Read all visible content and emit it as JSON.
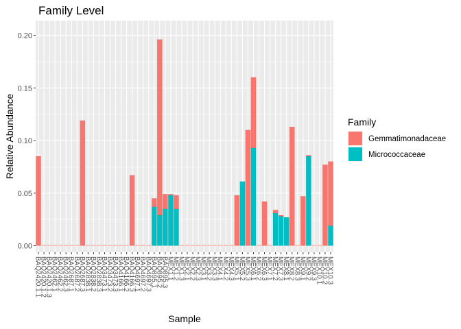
{
  "chart_data": {
    "type": "bar",
    "stacked": true,
    "title": "Family Level",
    "xlabel": "Sample",
    "ylabel": "Relative Abundance",
    "ylim": [
      0,
      0.21
    ],
    "yticks": [
      "0.00",
      "0.05",
      "0.10",
      "0.15",
      "0.20"
    ],
    "ytick_values": [
      0,
      0.05,
      0.1,
      0.15,
      0.2
    ],
    "legend": {
      "title": "Family",
      "position": "right",
      "entries": [
        "Gemmatimonadaceae",
        "Micrococcaceae"
      ]
    },
    "categories": [
      "BAQ2420.1.1",
      "BAQ2420.1.2",
      "BAQ2420.1.3",
      "BAQ2462.1",
      "BAQ2462.2",
      "BAQ2462.3",
      "BAQ2687.1",
      "BAQ2687.2",
      "BAQ2687.3",
      "BAQ2838.1",
      "BAQ2838.2",
      "BAQ2838.3",
      "BAQ3473.1",
      "BAQ3473.2",
      "BAQ3473.3",
      "BAQ4166.1",
      "BAQ4166.2",
      "BAQ4166.3",
      "BAQ4697.1",
      "BAQ4697.2",
      "BAQ4697.3",
      "BAQ895.1",
      "BAQ895.2",
      "BAQ895.3",
      "MEX1.1",
      "MEX1.2",
      "MEX1.3",
      "MEX2.1",
      "MEX2.2",
      "MEX2.3",
      "MEX3.1",
      "MEX3.2",
      "MEX3.3",
      "MEX4.1",
      "MEX4.2",
      "MEX4.3",
      "MEX5.1",
      "MEX5.2",
      "MEX5.3",
      "MEX6.1",
      "MEX6.2",
      "MEX6.3",
      "MEX7.1",
      "MEX7.2",
      "MEX7.3",
      "MEX8.1",
      "MEX8.2",
      "MEX8.3",
      "MEX9.1",
      "MEX9.2",
      "MEX9.3",
      "MEX10.1",
      "MEX10.2",
      "MEX10.3"
    ],
    "tick_labels": [
      "BAQ2420.1.1",
      "BAQ2420.1.2",
      "BAQ2420.1.3",
      "BAQ2462.1",
      "BAQ2462.2",
      "BAQ2462.3",
      "BAQ2687.1",
      "BAQ2687.2",
      "BAQ2687.3",
      "BAQ2838.1",
      "BAQ2838.2",
      "BAQ2838.3",
      "BAQ3473.1",
      "BAQ3473.2",
      "BAQ3473.3",
      "BAQ4166.1",
      "BAQ4166.2",
      "BAQ4166.3",
      "BAQ4697.1",
      "BAQ4697.2",
      "BAQ4697.3",
      "BAQ895.1",
      "BAQ895.2",
      "BAQ895.3",
      "MEX1.1",
      "MEX1.2",
      "MEX1.3",
      "MEX2.1",
      "MEX2.2",
      "MEX2.3",
      "MEX3.1",
      "MEX3.2",
      "MEX3.3",
      "MEX4.1",
      "MEX4.2",
      "MEX4.3",
      "MEX5.1",
      "MEX5.2",
      "MEX5.3",
      "MEX6.1",
      "MEX6.2",
      "MEX6.3",
      "MEX7.1",
      "MEX7.2",
      "MEX7.3",
      "MEX8.1",
      "MEX8.2",
      "MEX8.3",
      "MEX9.1",
      "MEX9.2",
      "MEX9.3",
      "MEX10.1",
      "MEX10.2",
      "MEX10.3"
    ],
    "series": [
      {
        "name": "Gemmatimonadaceae",
        "color": "#F8766D",
        "values": [
          0.085,
          0,
          0,
          0,
          0,
          0,
          0,
          0,
          0.119,
          0,
          0,
          0,
          0,
          0,
          0,
          0,
          0,
          0.067,
          0,
          0,
          0,
          0.008,
          0.167,
          0.014,
          0.001,
          0.013,
          0,
          0,
          0,
          0,
          0,
          0,
          0,
          0,
          0,
          0,
          0.048,
          0,
          0.11,
          0.067,
          0,
          0.042,
          0,
          0.003,
          0.001,
          0,
          0.113,
          0,
          0.047,
          0.001,
          0,
          0,
          0.077,
          0.061
        ]
      },
      {
        "name": "Micrococcaceae",
        "color": "#00BFC4",
        "values": [
          0,
          0,
          0,
          0,
          0,
          0,
          0,
          0,
          0,
          0,
          0,
          0,
          0,
          0,
          0,
          0,
          0,
          0,
          0,
          0,
          0,
          0.037,
          0.029,
          0.035,
          0.048,
          0.035,
          0,
          0,
          0,
          0,
          0,
          0,
          0,
          0,
          0,
          0,
          0,
          0.061,
          0,
          0.093,
          0,
          0,
          0,
          0.031,
          0.028,
          0.027,
          0,
          0,
          0,
          0.085,
          0,
          0,
          0,
          0.019
        ]
      }
    ]
  }
}
